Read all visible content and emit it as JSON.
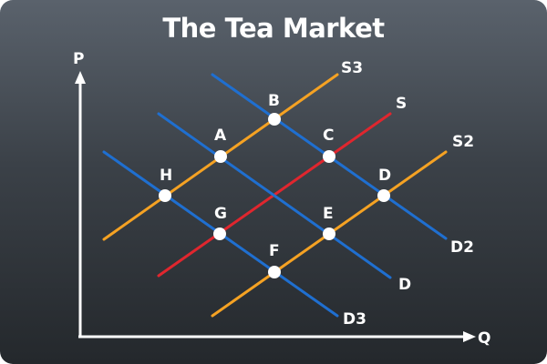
{
  "title": "The Tea Market",
  "axes": {
    "y_label": "P",
    "x_label": "Q"
  },
  "lines": [
    {
      "name": "S3",
      "kind": "supply",
      "color": "#f5a223"
    },
    {
      "name": "S",
      "kind": "supply",
      "color": "#e0262e"
    },
    {
      "name": "S2",
      "kind": "supply",
      "color": "#f5a223"
    },
    {
      "name": "D2",
      "kind": "demand",
      "color": "#1f6fd0"
    },
    {
      "name": "D",
      "kind": "demand",
      "color": "#1f6fd0"
    },
    {
      "name": "D3",
      "kind": "demand",
      "color": "#1f6fd0"
    }
  ],
  "points": [
    {
      "name": "B",
      "on": [
        "S3",
        "D2"
      ]
    },
    {
      "name": "A",
      "on": [
        "S3",
        "D"
      ]
    },
    {
      "name": "H",
      "on": [
        "S3",
        "D3"
      ]
    },
    {
      "name": "C",
      "on": [
        "S",
        "D2"
      ]
    },
    {
      "name": "G",
      "on": [
        "S",
        "D3"
      ]
    },
    {
      "name": "D",
      "on": [
        "S2",
        "D2"
      ]
    },
    {
      "name": "E",
      "on": [
        "S2",
        "D"
      ]
    },
    {
      "name": "F",
      "on": [
        "S2",
        "D3"
      ]
    }
  ]
}
